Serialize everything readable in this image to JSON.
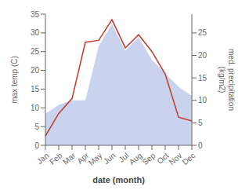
{
  "chart_data": {
    "type": "line",
    "categories": [
      "Jan",
      "Feb",
      "Mar",
      "Apr",
      "May",
      "Jun",
      "Jul",
      "Aug",
      "Sep",
      "Oct",
      "Nov",
      "Dec"
    ],
    "xlabel": "date (month)",
    "ylabel": "max temp (C)",
    "y2label": "med. precipitation\n(kg/m2)",
    "ylim": [
      0,
      35
    ],
    "yticks": [
      0,
      5,
      10,
      15,
      20,
      25,
      30,
      35
    ],
    "y2lim": [
      0,
      29.17
    ],
    "y2ticks": [
      0,
      5,
      10,
      15,
      20,
      25
    ],
    "grid": false,
    "series": [
      {
        "type": "area",
        "color": "#b8c4e8",
        "axis": "y2",
        "values": [
          7,
          9,
          10,
          10,
          22,
          27,
          21,
          24,
          19,
          16,
          13,
          11
        ]
      },
      {
        "type": "line",
        "color": "#c0392b",
        "values": [
          2.5,
          8.5,
          12.5,
          27.5,
          28.0,
          33.5,
          26.0,
          29.5,
          25.0,
          19.0,
          7.5,
          6.5
        ]
      }
    ]
  }
}
